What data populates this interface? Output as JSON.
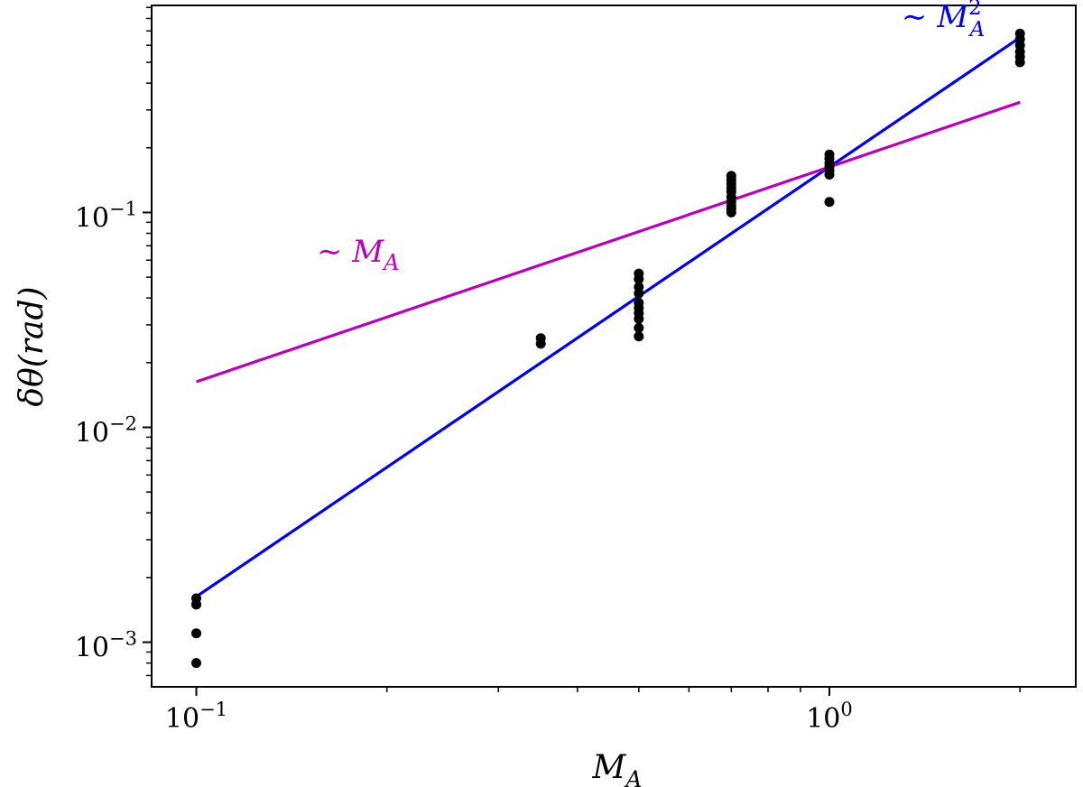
{
  "chart_data": {
    "type": "scatter",
    "xscale": "log",
    "yscale": "log",
    "xlim": [
      0.085,
      2.45
    ],
    "ylim": [
      0.00062,
      0.92
    ],
    "grid": false,
    "xlabel": {
      "base": "M",
      "sub": "A"
    },
    "ylabel": {
      "prefix": "δθ",
      "suffix": "(rad)"
    },
    "x_major_ticks": [
      {
        "value": 0.1,
        "base": "10",
        "exp": "−1"
      },
      {
        "value": 1,
        "base": "10",
        "exp": "0"
      }
    ],
    "x_minor_ticks": [
      0.2,
      0.3,
      0.4,
      0.5,
      0.6,
      0.7,
      0.8,
      0.9,
      2
    ],
    "y_major_ticks": [
      {
        "value": 0.001,
        "base": "10",
        "exp": "−3"
      },
      {
        "value": 0.01,
        "base": "10",
        "exp": "−2"
      },
      {
        "value": 0.1,
        "base": "10",
        "exp": "−1"
      }
    ],
    "y_minor_ticks": [
      0.0007,
      0.0008,
      0.0009,
      0.002,
      0.003,
      0.004,
      0.005,
      0.006,
      0.007,
      0.008,
      0.009,
      0.02,
      0.03,
      0.04,
      0.05,
      0.06,
      0.07,
      0.08,
      0.09,
      0.2,
      0.3,
      0.4,
      0.5,
      0.6,
      0.7,
      0.8,
      0.9
    ],
    "points": {
      "color": "#000000",
      "x": [
        0.1,
        0.1,
        0.1,
        0.1,
        0.1,
        0.35,
        0.35,
        0.5,
        0.5,
        0.5,
        0.5,
        0.5,
        0.5,
        0.5,
        0.5,
        0.5,
        0.5,
        0.7,
        0.7,
        0.7,
        0.7,
        0.7,
        0.7,
        0.7,
        0.7,
        0.7,
        0.7,
        1.0,
        1.0,
        1.0,
        1.0,
        1.0,
        1.0,
        1.0,
        2.0,
        2.0,
        2.0,
        2.0,
        2.0,
        2.0
      ],
      "y": [
        0.0016,
        0.0015,
        0.0015,
        0.0011,
        0.0008,
        0.026,
        0.0245,
        0.052,
        0.049,
        0.045,
        0.042,
        0.038,
        0.036,
        0.034,
        0.032,
        0.029,
        0.0265,
        0.148,
        0.142,
        0.136,
        0.13,
        0.125,
        0.118,
        0.112,
        0.107,
        0.104,
        0.1,
        0.186,
        0.178,
        0.17,
        0.163,
        0.157,
        0.15,
        0.112,
        0.68,
        0.64,
        0.6,
        0.56,
        0.53,
        0.5
      ]
    },
    "lines": [
      {
        "color": "#0000ee",
        "x": [
          0.1,
          2.0
        ],
        "y": [
          0.00163,
          0.652
        ]
      },
      {
        "color": "#bb00bb",
        "x": [
          0.1,
          2.0
        ],
        "y": [
          0.0163,
          0.326
        ]
      }
    ],
    "annotations": [
      {
        "tilde": "∼",
        "base": "M",
        "sub": "A",
        "sup": "2",
        "color": "#0000ee",
        "x": 1.3,
        "y": 0.73
      },
      {
        "tilde": "∼",
        "base": "M",
        "sub": "A",
        "sup": "",
        "color": "#bb00bb",
        "x": 0.155,
        "y": 0.059
      }
    ]
  }
}
